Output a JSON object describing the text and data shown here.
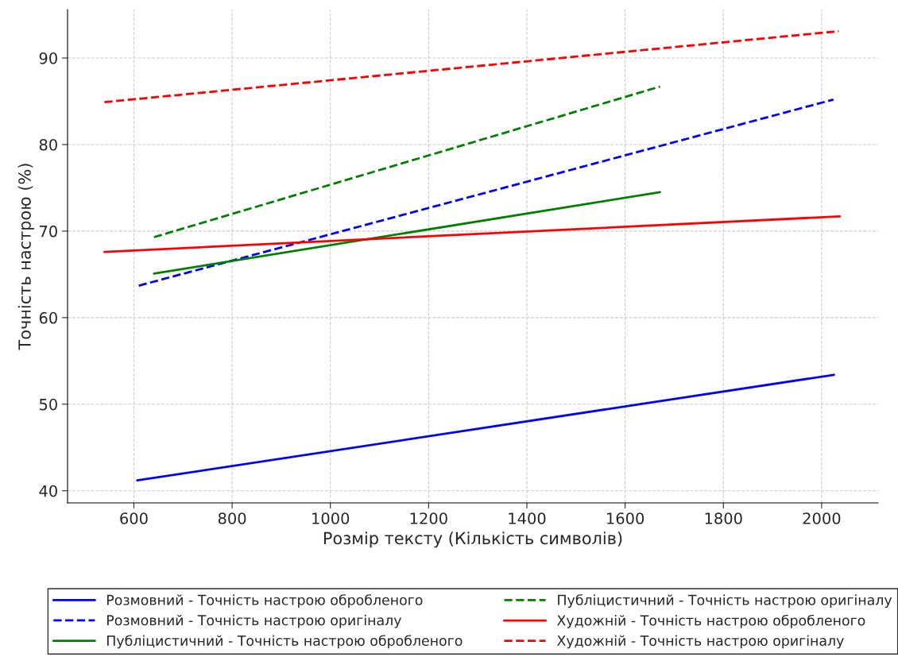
{
  "chart_data": {
    "type": "line",
    "xlabel": "Розмір тексту (Кількість символів)",
    "ylabel": "Точність настрою (%)",
    "xlim": [
      465,
      2115
    ],
    "ylim": [
      38.6,
      95.6
    ],
    "xticks": [
      600,
      800,
      1000,
      1200,
      1400,
      1600,
      1800,
      2000
    ],
    "yticks": [
      40,
      50,
      60,
      70,
      80,
      90
    ],
    "grid": true,
    "legend": "bottom",
    "series": [
      {
        "name": "Розмовний - Точність настрою обробленого",
        "color": "#0000ff",
        "line_style": "solid",
        "x": [
          607,
          2025
        ],
        "values": [
          41.2,
          53.4
        ]
      },
      {
        "name": "Розмовний - Точність настрою оригіналу",
        "color": "#0000ff",
        "line_style": "dashed",
        "x": [
          610,
          2024
        ],
        "values": [
          63.7,
          85.2
        ]
      },
      {
        "name": "Публіцистичний - Точність настрою обробленого",
        "color": "#008000",
        "line_style": "solid",
        "x": [
          641,
          1671
        ],
        "values": [
          65.1,
          74.5
        ]
      },
      {
        "name": "Публіцистичний - Точність настрою оригіналу",
        "color": "#008000",
        "line_style": "dashed",
        "x": [
          641,
          1671
        ],
        "values": [
          69.3,
          86.7
        ]
      },
      {
        "name": "Художній - Точність настрою обробленого",
        "color": "#ff0000",
        "line_style": "solid",
        "x": [
          540,
          2037
        ],
        "values": [
          67.6,
          71.7
        ]
      },
      {
        "name": "Художній - Точність настрою оригіналу",
        "color": "#ff0000",
        "line_style": "dashed",
        "x": [
          540,
          2035
        ],
        "values": [
          84.9,
          93.1
        ]
      }
    ]
  }
}
